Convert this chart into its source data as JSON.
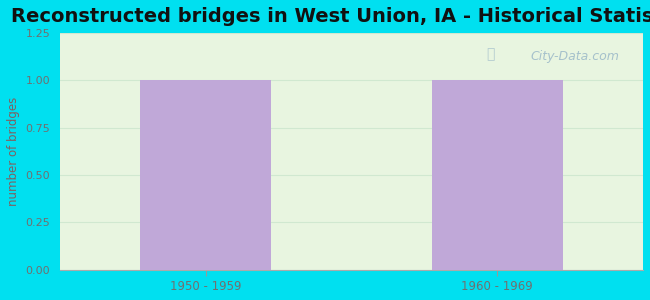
{
  "title": "Reconstructed bridges in West Union, IA - Historical Statistics",
  "categories": [
    "1950 - 1959",
    "1960 - 1969"
  ],
  "values": [
    1,
    1
  ],
  "bar_color": "#c0a8d8",
  "ylabel": "number of bridges",
  "ylim": [
    0,
    1.25
  ],
  "yticks": [
    0,
    0.25,
    0.5,
    0.75,
    1.0,
    1.25
  ],
  "background_outer": "#00e0f0",
  "background_inner": "#e8f5e0",
  "title_fontsize": 14,
  "ylabel_color": "#806060",
  "title_color": "#111111",
  "tick_color": "#707070",
  "watermark": "City-Data.com",
  "grid_color": "#d0e8d0"
}
